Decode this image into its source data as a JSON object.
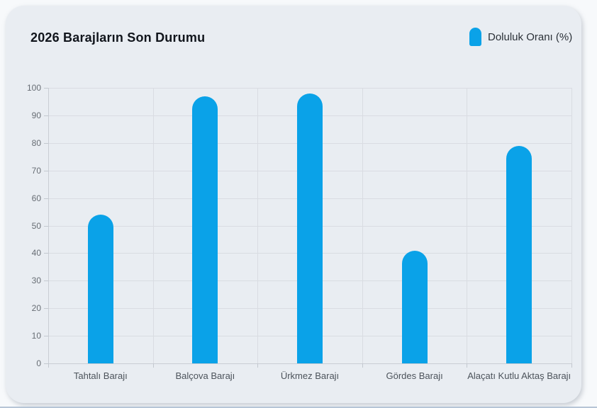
{
  "card": {
    "title": "2026 Barajların Son Durumu"
  },
  "legend": {
    "label": "Doluluk Oranı (%)",
    "color": "#0aa2e8"
  },
  "colors": {
    "accent_bar": "#0aa2e8",
    "card_background": "#e9edf2",
    "gridline": "#d9dce2"
  },
  "chart_data": {
    "type": "bar",
    "title": "2026 Barajların Son Durumu",
    "categories": [
      "Tahtalı Barajı",
      "Balçova Barajı",
      "Ürkmez Barajı",
      "Gördes Barajı",
      "Alaçatı Kutlu Aktaş Barajı"
    ],
    "series": [
      {
        "name": "Doluluk Oranı (%)",
        "color": "#0aa2e8",
        "values": [
          54,
          97,
          98,
          41,
          79
        ]
      }
    ],
    "xlabel": "",
    "ylabel": "",
    "ylim": [
      0,
      100
    ],
    "yticks": [
      0,
      10,
      20,
      30,
      40,
      50,
      60,
      70,
      80,
      90,
      100
    ],
    "grid": true,
    "legend_position": "top-right",
    "bar_style": "rounded-top"
  }
}
